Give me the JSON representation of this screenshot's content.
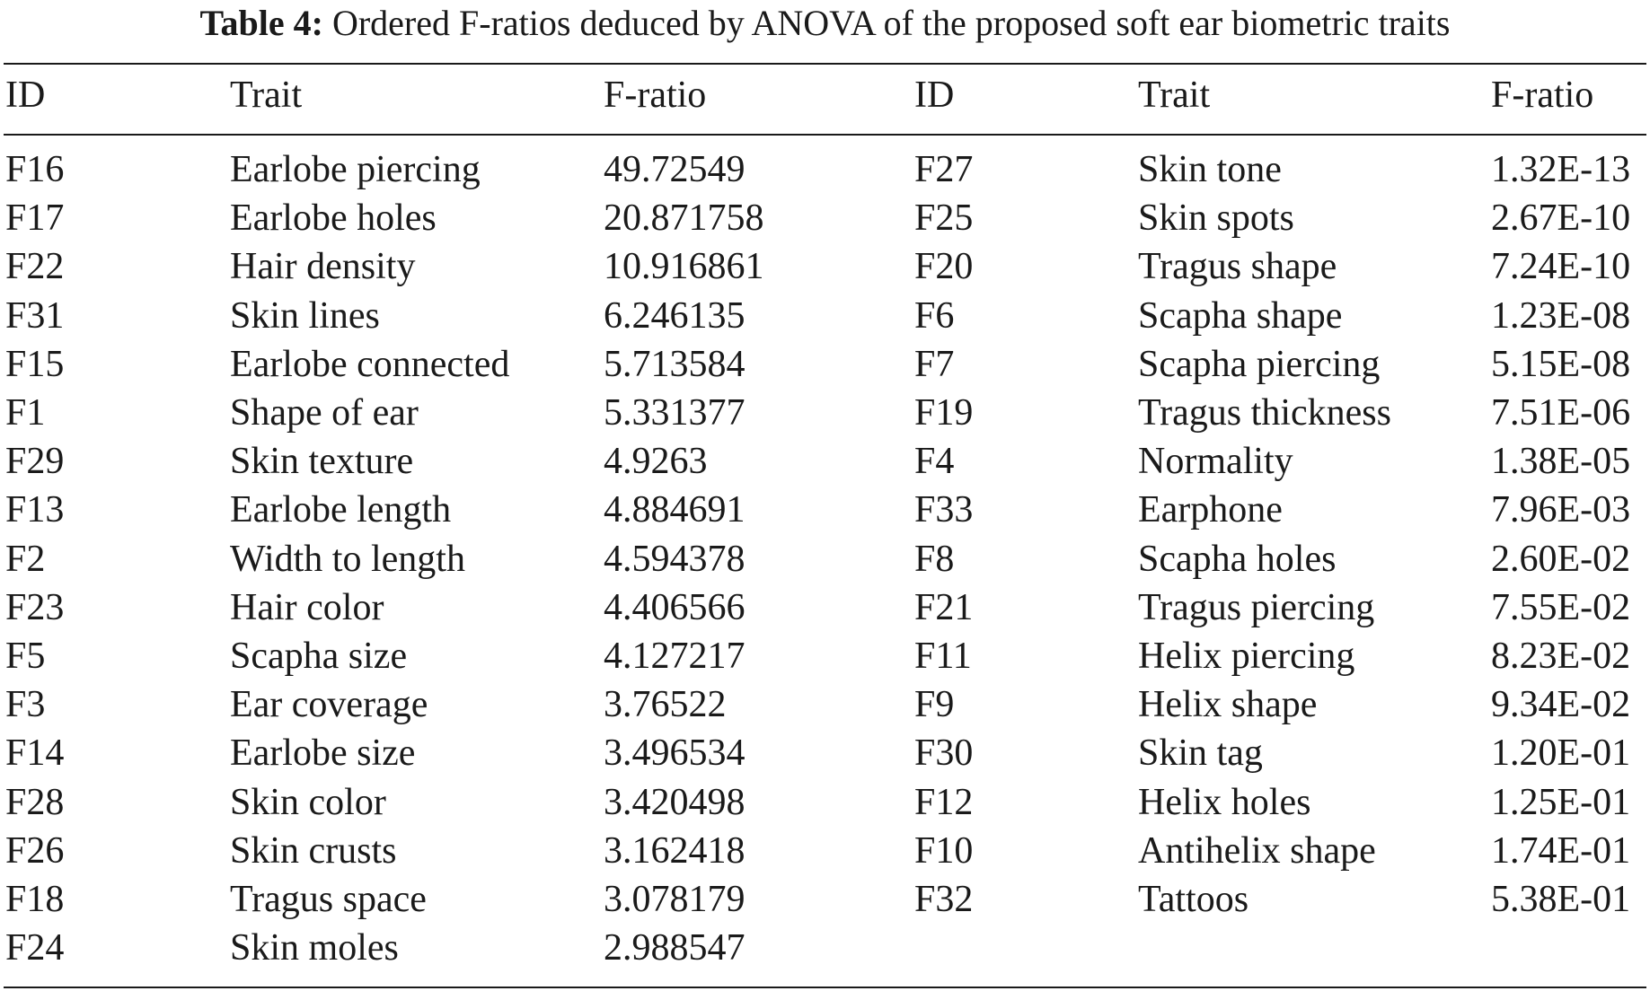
{
  "caption": {
    "label": "Table 4:",
    "text": "Ordered F-ratios deduced by ANOVA of the proposed soft ear biometric traits"
  },
  "headers": [
    "ID",
    "Trait",
    "F-ratio",
    "ID",
    "Trait",
    "F-ratio"
  ],
  "left_rows": [
    {
      "id": "F16",
      "trait": "Earlobe piercing",
      "fratio": "49.72549"
    },
    {
      "id": "F17",
      "trait": "Earlobe holes",
      "fratio": "20.871758"
    },
    {
      "id": "F22",
      "trait": "Hair density",
      "fratio": "10.916861"
    },
    {
      "id": "F31",
      "trait": "Skin lines",
      "fratio": "6.246135"
    },
    {
      "id": "F15",
      "trait": "Earlobe connected",
      "fratio": "5.713584"
    },
    {
      "id": "F1",
      "trait": "Shape of ear",
      "fratio": "5.331377"
    },
    {
      "id": "F29",
      "trait": "Skin texture",
      "fratio": "4.9263"
    },
    {
      "id": "F13",
      "trait": "Earlobe length",
      "fratio": "4.884691"
    },
    {
      "id": "F2",
      "trait": "Width to length",
      "fratio": "4.594378"
    },
    {
      "id": "F23",
      "trait": "Hair color",
      "fratio": "4.406566"
    },
    {
      "id": "F5",
      "trait": "Scapha size",
      "fratio": "4.127217"
    },
    {
      "id": "F3",
      "trait": "Ear coverage",
      "fratio": "3.76522"
    },
    {
      "id": "F14",
      "trait": "Earlobe size",
      "fratio": "3.496534"
    },
    {
      "id": "F28",
      "trait": "Skin color",
      "fratio": "3.420498"
    },
    {
      "id": "F26",
      "trait": "Skin crusts",
      "fratio": "3.162418"
    },
    {
      "id": "F18",
      "trait": "Tragus space",
      "fratio": "3.078179"
    },
    {
      "id": "F24",
      "trait": "Skin moles",
      "fratio": "2.988547"
    }
  ],
  "right_rows": [
    {
      "id": "F27",
      "trait": "Skin tone",
      "fratio": "1.32E-13"
    },
    {
      "id": "F25",
      "trait": "Skin spots",
      "fratio": "2.67E-10"
    },
    {
      "id": "F20",
      "trait": "Tragus shape",
      "fratio": "7.24E-10"
    },
    {
      "id": "F6",
      "trait": "Scapha shape",
      "fratio": "1.23E-08"
    },
    {
      "id": "F7",
      "trait": "Scapha piercing",
      "fratio": "5.15E-08"
    },
    {
      "id": "F19",
      "trait": "Tragus thickness",
      "fratio": "7.51E-06"
    },
    {
      "id": "F4",
      "trait": "Normality",
      "fratio": "1.38E-05"
    },
    {
      "id": "F33",
      "trait": "Earphone",
      "fratio": "7.96E-03"
    },
    {
      "id": "F8",
      "trait": "Scapha holes",
      "fratio": "2.60E-02"
    },
    {
      "id": "F21",
      "trait": "Tragus piercing",
      "fratio": "7.55E-02"
    },
    {
      "id": "F11",
      "trait": "Helix piercing",
      "fratio": "8.23E-02"
    },
    {
      "id": "F9",
      "trait": "Helix shape",
      "fratio": "9.34E-02"
    },
    {
      "id": "F30",
      "trait": "Skin tag",
      "fratio": "1.20E-01"
    },
    {
      "id": "F12",
      "trait": "Helix holes",
      "fratio": "1.25E-01"
    },
    {
      "id": "F10",
      "trait": "Antihelix shape",
      "fratio": "1.74E-01"
    },
    {
      "id": "F32",
      "trait": "Tattoos",
      "fratio": "5.38E-01"
    }
  ]
}
